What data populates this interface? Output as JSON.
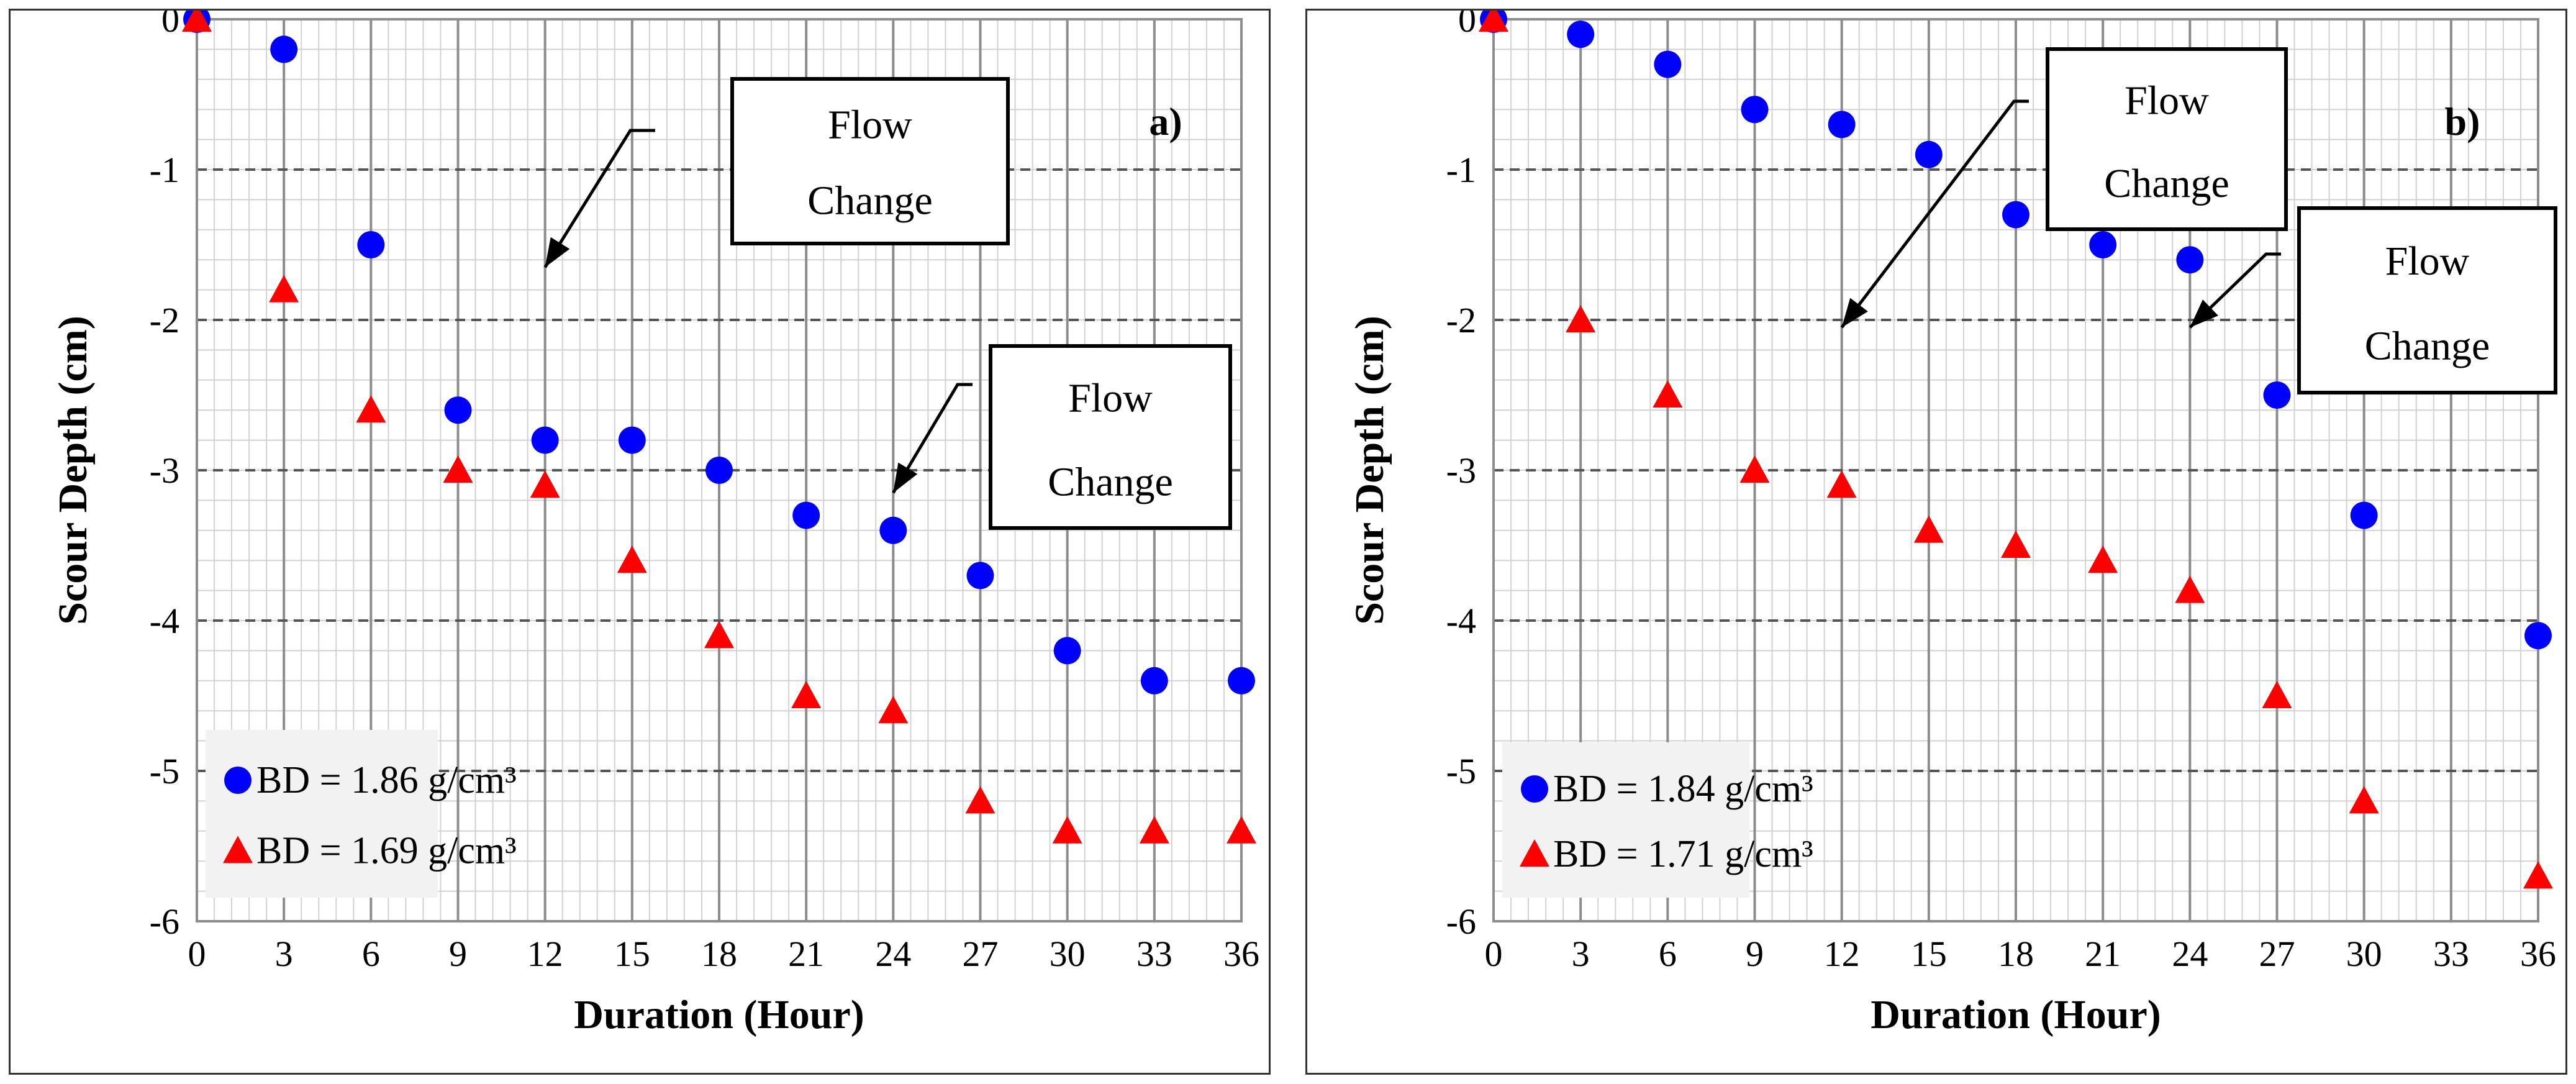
{
  "chart_data": [
    {
      "type": "scatter",
      "panel_label": "a)",
      "xlabel": "Duration (Hour)",
      "ylabel": "Scour Depth (cm)",
      "xlim": [
        0,
        36
      ],
      "ylim": [
        -6,
        0
      ],
      "xticks": [
        0,
        3,
        6,
        9,
        12,
        15,
        18,
        21,
        24,
        27,
        30,
        33,
        36
      ],
      "yticks": [
        0,
        -1,
        -2,
        -3,
        -4,
        -5,
        -6
      ],
      "grid": true,
      "legend_position": "bottom-left",
      "series": [
        {
          "name": "BD = 1.86 g/cm³",
          "marker": "circle",
          "color": "#0000ff",
          "x": [
            0,
            3,
            6,
            9,
            12,
            15,
            18,
            21,
            24,
            27,
            30,
            33,
            36
          ],
          "y": [
            0,
            -0.2,
            -1.5,
            -2.6,
            -2.8,
            -2.8,
            -3.0,
            -3.3,
            -3.4,
            -3.7,
            -4.2,
            -4.4,
            -4.4
          ]
        },
        {
          "name": "BD = 1.69 g/cm³",
          "marker": "triangle",
          "color": "#ff0000",
          "x": [
            0,
            3,
            6,
            9,
            12,
            15,
            18,
            21,
            24,
            27,
            30,
            33,
            36
          ],
          "y": [
            0,
            -1.8,
            -2.6,
            -3.0,
            -3.1,
            -3.6,
            -4.1,
            -4.5,
            -4.6,
            -5.2,
            -5.4,
            -5.4,
            -5.4
          ]
        }
      ],
      "annotations": [
        {
          "lines": [
            "Flow",
            "Change"
          ],
          "points_to": {
            "x": 12,
            "y": -1.65
          }
        },
        {
          "lines": [
            "Flow",
            "Change"
          ],
          "points_to": {
            "x": 24,
            "y": -3.15
          }
        }
      ]
    },
    {
      "type": "scatter",
      "panel_label": "b)",
      "xlabel": "Duration (Hour)",
      "ylabel": "Scour Depth (cm)",
      "xlim": [
        0,
        36
      ],
      "ylim": [
        -6,
        0
      ],
      "xticks": [
        0,
        3,
        6,
        9,
        12,
        15,
        18,
        21,
        24,
        27,
        30,
        33,
        36
      ],
      "yticks": [
        0,
        -1,
        -2,
        -3,
        -4,
        -5,
        -6
      ],
      "grid": true,
      "legend_position": "bottom-left",
      "series": [
        {
          "name": "BD = 1.84 g/cm³",
          "marker": "circle",
          "color": "#0000ff",
          "x": [
            0,
            3,
            6,
            9,
            12,
            15,
            18,
            21,
            24,
            27,
            30,
            36
          ],
          "y": [
            0,
            -0.1,
            -0.3,
            -0.6,
            -0.7,
            -0.9,
            -1.3,
            -1.5,
            -1.6,
            -2.5,
            -3.3,
            -4.1
          ]
        },
        {
          "name": "BD = 1.71 g/cm³",
          "marker": "triangle",
          "color": "#ff0000",
          "x": [
            0,
            3,
            6,
            9,
            12,
            15,
            18,
            21,
            24,
            27,
            30,
            36
          ],
          "y": [
            0,
            -2.0,
            -2.5,
            -3.0,
            -3.1,
            -3.4,
            -3.5,
            -3.6,
            -3.8,
            -4.5,
            -5.2,
            -5.7
          ]
        }
      ],
      "annotations": [
        {
          "lines": [
            "Flow",
            "Change"
          ],
          "points_to": {
            "x": 12,
            "y": -2.05
          }
        },
        {
          "lines": [
            "Flow",
            "Change"
          ],
          "points_to": {
            "x": 24,
            "y": -2.05
          }
        }
      ]
    }
  ]
}
